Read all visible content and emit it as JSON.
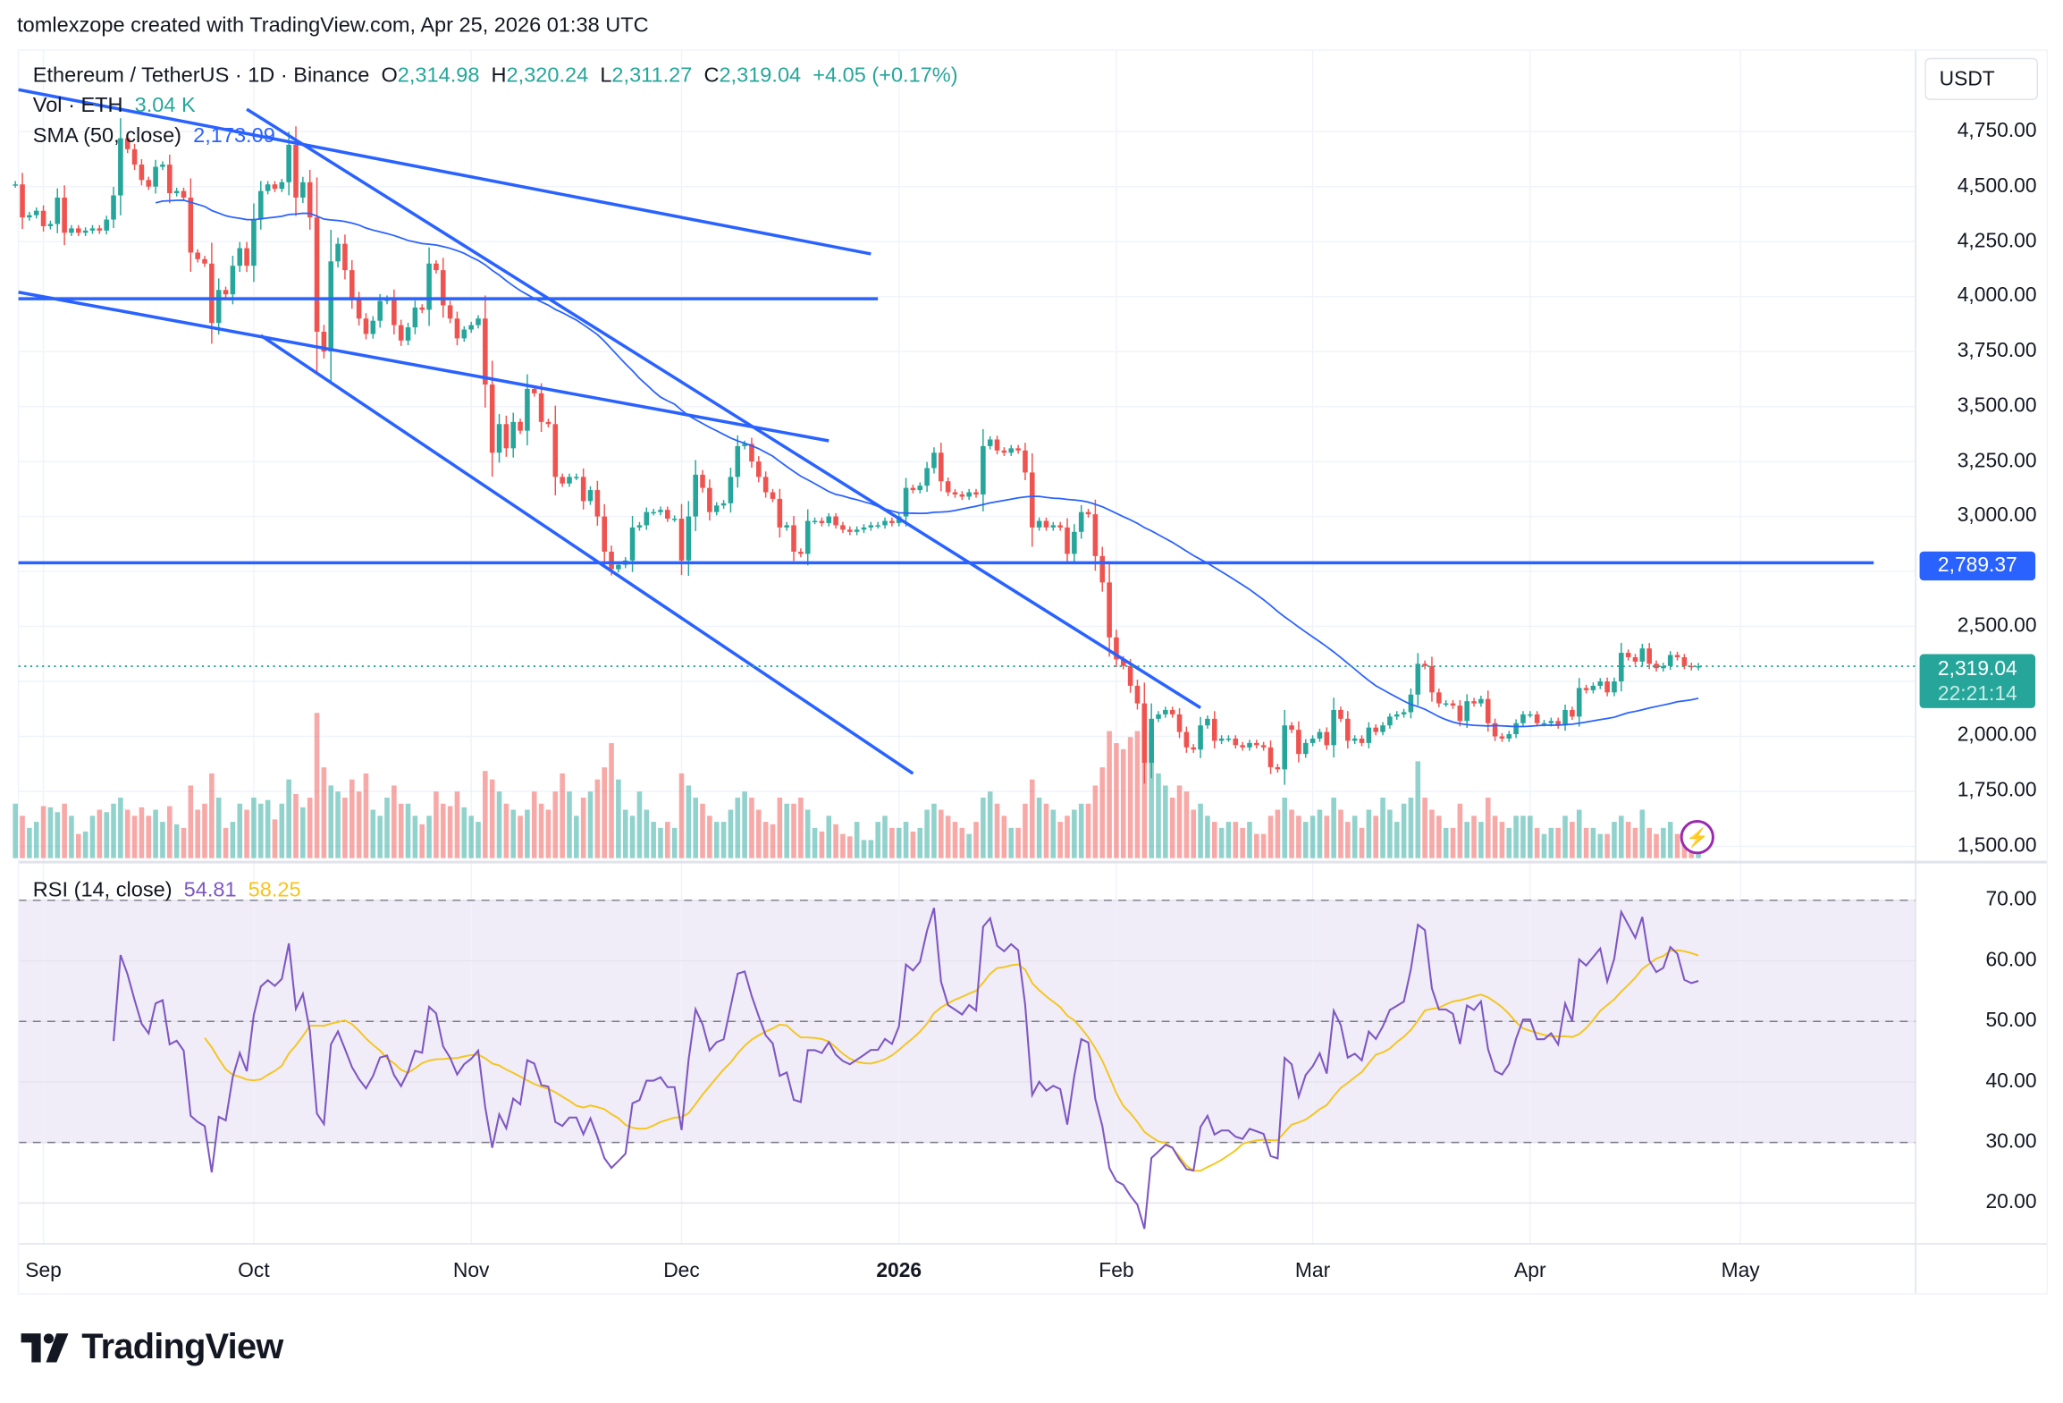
{
  "credit": "tomlexzope created with TradingView.com, Apr 25, 2026 01:38 UTC",
  "legend": {
    "symbol": "Ethereum / TetherUS · 1D · Binance",
    "o_label": "O",
    "o": "2,314.98",
    "h_label": "H",
    "h": "2,320.24",
    "l_label": "L",
    "l": "2,311.27",
    "c_label": "C",
    "c": "2,319.04",
    "change": "+4.05 (+0.17%)",
    "vol_label": "Vol · ETH",
    "vol": "3.04 K",
    "sma_label": "SMA (50, close)",
    "sma": "2,173.09",
    "rsi_label": "RSI (14, close)",
    "rsi": "54.81",
    "rsi_ma": "58.25"
  },
  "currency": "USDT",
  "price_ticks": [
    "4,750.00",
    "4,500.00",
    "4,250.00",
    "4,000.00",
    "3,750.00",
    "3,500.00",
    "3,250.00",
    "3,000.00",
    "2,500.00",
    "2,000.00",
    "1,750.00",
    "1,500.00"
  ],
  "price_tick_values": [
    4750,
    4500,
    4250,
    4000,
    3750,
    3500,
    3250,
    3000,
    2500,
    2000,
    1750,
    1500
  ],
  "level_badge": "2,789.37",
  "last_price_badge": "2,319.04",
  "countdown": "22:21:14",
  "rsi_ticks": [
    "70.00",
    "60.00",
    "50.00",
    "40.00",
    "30.00",
    "20.00"
  ],
  "rsi_tick_values": [
    70,
    60,
    50,
    40,
    30,
    20
  ],
  "time_ticks": [
    {
      "label": "Sep",
      "date": "2025-09-01",
      "bold": false
    },
    {
      "label": "Oct",
      "date": "2025-10-01",
      "bold": false
    },
    {
      "label": "Nov",
      "date": "2025-11-01",
      "bold": false
    },
    {
      "label": "Dec",
      "date": "2025-12-01",
      "bold": false
    },
    {
      "label": "2026",
      "date": "2026-01-01",
      "bold": true
    },
    {
      "label": "Feb",
      "date": "2026-02-01",
      "bold": false
    },
    {
      "label": "Mar",
      "date": "2026-03-01",
      "bold": false
    },
    {
      "label": "Apr",
      "date": "2026-04-01",
      "bold": false
    },
    {
      "label": "May",
      "date": "2026-05-01",
      "bold": false
    }
  ],
  "logo_text": "TradingView",
  "colors": {
    "up": "#26a69a",
    "down": "#ef5350",
    "sma": "#2962ff",
    "drawing": "#2962ff",
    "rsi": "#7e57c2",
    "rsi_ma": "#f5c51b",
    "rsi_band": "#f0ecf8"
  },
  "chart_data": {
    "type": "candlestick",
    "symbol": "ETH/USDT",
    "interval": "1D",
    "ylim": [
      1500,
      4900
    ],
    "rsi_ylim": [
      15,
      75
    ],
    "rsi_levels": [
      70,
      50,
      30
    ],
    "grid": true,
    "months": [
      {
        "month": "2025-08",
        "start_day": 28,
        "close": [
          4510,
          4360,
          4370,
          4390
        ],
        "volume_k": [
          4.5,
          3.5,
          2.5,
          3
        ]
      },
      {
        "month": "2025-09",
        "start_day": 1,
        "close": [
          4320,
          4330,
          4450,
          4290,
          4310,
          4290,
          4300,
          4310,
          4300,
          4350,
          4460,
          4720,
          4670,
          4600,
          4530,
          4500,
          4590,
          4600,
          4470,
          4480,
          4450,
          4200,
          4170,
          4150,
          3880,
          4030,
          4010,
          4140,
          4220,
          4140
        ],
        "volume_k": [
          4.3,
          4.2,
          3.8,
          4.5,
          3.5,
          2,
          2.2,
          3.5,
          4,
          3.8,
          4.5,
          5,
          4,
          3.5,
          4.2,
          3.5,
          4,
          3,
          4.3,
          2.8,
          2.5,
          6,
          4,
          4.5,
          7,
          5,
          2.5,
          3,
          4.5,
          4
        ]
      },
      {
        "month": "2025-10",
        "start_day": 1,
        "close": [
          4350,
          4480,
          4510,
          4490,
          4520,
          4690,
          4450,
          4520,
          4360,
          3840,
          3750,
          4160,
          4240,
          4120,
          3990,
          3900,
          3830,
          3890,
          3980,
          3990,
          3870,
          3800,
          3860,
          3950,
          3940,
          4150,
          4120,
          3960,
          3900,
          3810,
          3850
        ],
        "volume_k": [
          5,
          4.5,
          4.8,
          3.2,
          4.5,
          6.5,
          5.3,
          4.2,
          5,
          12,
          7.5,
          6,
          5.5,
          5,
          6.5,
          5.5,
          7,
          4,
          3.5,
          5,
          6,
          4.5,
          4.5,
          3.5,
          2.8,
          3.5,
          5.5,
          4.5,
          4.3,
          5.5,
          4.2
        ]
      },
      {
        "month": "2025-11",
        "start_day": 1,
        "close": [
          3870,
          3900,
          3600,
          3290,
          3420,
          3310,
          3430,
          3390,
          3580,
          3560,
          3430,
          3420,
          3180,
          3150,
          3180,
          3180,
          3070,
          3120,
          3000,
          2840,
          2760,
          2780,
          2800,
          2950,
          2960,
          3020,
          3020,
          3030,
          2990,
          2990
        ],
        "volume_k": [
          3.5,
          3,
          7.2,
          6.5,
          5.5,
          4.5,
          4,
          3.5,
          4,
          5.5,
          4.5,
          4,
          5.5,
          7,
          5.5,
          3.5,
          5,
          5.5,
          6.5,
          7.5,
          9.5,
          6.5,
          4,
          3.5,
          5.5,
          4,
          3,
          2.5,
          3,
          2.5
        ]
      },
      {
        "month": "2025-12",
        "start_day": 1,
        "close": [
          2800,
          3000,
          3190,
          3130,
          3020,
          3050,
          3060,
          3180,
          3320,
          3330,
          3250,
          3180,
          3110,
          3080,
          2950,
          2960,
          2840,
          2830,
          2980,
          2980,
          2970,
          3000,
          2960,
          2940,
          2930,
          2940,
          2950,
          2960,
          2960,
          2980,
          2970
        ],
        "volume_k": [
          7,
          6,
          5,
          4.5,
          3.5,
          3,
          3,
          4,
          5,
          5.5,
          5,
          4,
          3,
          2.8,
          5,
          4.5,
          4.5,
          5,
          4,
          2.5,
          2.2,
          3.5,
          2.8,
          2,
          1.8,
          3,
          1.5,
          1.5,
          3,
          3.5,
          2.5
        ]
      },
      {
        "month": "2026-01",
        "start_day": 1,
        "close": [
          3000,
          3130,
          3120,
          3140,
          3220,
          3290,
          3160,
          3110,
          3100,
          3090,
          3110,
          3100,
          3320,
          3350,
          3300,
          3290,
          3310,
          3300,
          3200,
          2950,
          2980,
          2950,
          2960,
          2950,
          2830,
          2930,
          3020,
          3010,
          2820,
          2700,
          2450
        ],
        "volume_k": [
          2.5,
          3,
          2.2,
          2.5,
          4,
          4.5,
          4,
          3.5,
          3,
          2.5,
          2,
          3,
          5,
          5.5,
          4.5,
          3.5,
          2.5,
          2.5,
          4.5,
          6.5,
          5,
          4.5,
          4,
          3,
          3.5,
          4,
          4.5,
          4.5,
          6,
          7.5,
          10.5
        ]
      },
      {
        "month": "2026-02",
        "start_day": 1,
        "close": [
          2350,
          2320,
          2230,
          2150,
          1880,
          2080,
          2100,
          2120,
          2100,
          2020,
          1950,
          1940,
          2050,
          2080,
          1980,
          1990,
          1990,
          1960,
          1950,
          1970,
          1960,
          1950,
          1860,
          1850,
          2050,
          2030,
          1920,
          1970
        ],
        "volume_k": [
          9.5,
          9,
          10,
          10.5,
          12,
          10.5,
          7,
          6,
          5,
          6,
          5.5,
          4,
          4.5,
          3.5,
          3,
          2.5,
          3,
          3,
          2.5,
          3,
          2,
          2,
          3.5,
          4,
          5,
          4,
          3.5,
          3
        ]
      },
      {
        "month": "2026-03",
        "start_day": 1,
        "close": [
          1990,
          2020,
          1960,
          2120,
          2080,
          1980,
          1990,
          1970,
          2040,
          2020,
          2050,
          2090,
          2100,
          2110,
          2190,
          2330,
          2320,
          2200,
          2150,
          2150,
          2140,
          2070,
          2160,
          2150,
          2170,
          2060,
          2000,
          1990,
          2010,
          2060,
          2100
        ],
        "volume_k": [
          3.5,
          4,
          3.5,
          5,
          4,
          3,
          3.5,
          2.5,
          4,
          3.5,
          5,
          4,
          3,
          4.5,
          5,
          8,
          5,
          4,
          3.5,
          2.5,
          2.5,
          4.5,
          3,
          3.5,
          3,
          5,
          3.5,
          3,
          2.5,
          3.5,
          3.5
        ]
      },
      {
        "month": "2026-04",
        "start_day": 1,
        "close": [
          2100,
          2060,
          2060,
          2070,
          2050,
          2120,
          2090,
          2220,
          2210,
          2230,
          2250,
          2200,
          2250,
          2380,
          2360,
          2340,
          2400,
          2330,
          2310,
          2320,
          2370,
          2360,
          2320,
          2315,
          2319.04
        ],
        "volume_k": [
          3.5,
          2.5,
          2,
          2.5,
          2.5,
          3.5,
          3,
          4,
          2.5,
          2.5,
          2,
          2,
          3,
          3.5,
          3,
          2.5,
          4,
          2.5,
          2,
          2.5,
          3,
          2,
          2,
          3,
          3.04
        ]
      }
    ],
    "drawings": [
      {
        "name": "upper-trendline",
        "from": [
          "2025-08-28",
          4941
        ],
        "to": [
          "2025-12-28",
          4194
        ]
      },
      {
        "name": "steep-descending-line",
        "from": [
          "2025-09-30",
          4852
        ],
        "to": [
          "2026-02-13",
          2130
        ]
      },
      {
        "name": "channel-top-line",
        "from": [
          "2025-08-28",
          4020
        ],
        "to": [
          "2025-12-22",
          3344
        ]
      },
      {
        "name": "channel-bottom-line",
        "from": [
          "2025-10-02",
          3823
        ],
        "to": [
          "2026-01-03",
          1831
        ]
      },
      {
        "name": "horizontal-resistance-3990",
        "from": [
          "2025-08-28",
          3990
        ],
        "to": [
          "2025-12-29",
          3990
        ]
      },
      {
        "name": "horizontal-level-2789",
        "from": [
          "2025-08-28",
          2789.37
        ],
        "to": [
          "2026-05-20",
          2789.37
        ]
      }
    ]
  }
}
